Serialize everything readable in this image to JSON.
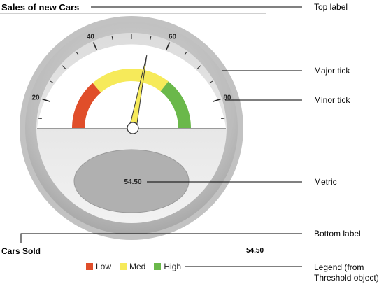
{
  "top_label": "Sales of new Cars",
  "bottom_label": "Cars Sold",
  "bottom_value": "54.50",
  "metric": "54.50",
  "gauge": {
    "value": 54.5,
    "min": 0,
    "max": 100
  },
  "tick_labels": [
    "20",
    "40",
    "60",
    "80"
  ],
  "thresholds": [
    {
      "name": "Low",
      "from": 0,
      "to": 33,
      "color": "#e04e2a"
    },
    {
      "name": "Med",
      "from": 33,
      "to": 66,
      "color": "#f6ea5a"
    },
    {
      "name": "High",
      "from": 66,
      "to": 100,
      "color": "#6ab84a"
    }
  ],
  "legend": [
    {
      "label": "Low",
      "color": "#e04e2a"
    },
    {
      "label": "Med",
      "color": "#f6ea5a"
    },
    {
      "label": "High",
      "color": "#6ab84a"
    }
  ],
  "callouts": {
    "top_label": "Top label",
    "major_tick": "Major tick",
    "minor_tick": "Minor tick",
    "metric": "Metric",
    "bottom_label": "Bottom label",
    "legend_line1": "Legend (from",
    "legend_line2": "Threshold object)"
  }
}
